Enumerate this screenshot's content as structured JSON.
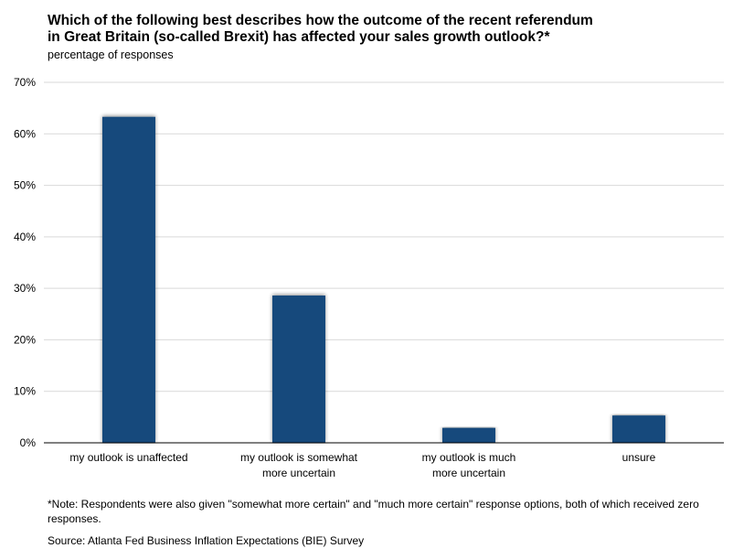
{
  "header": {
    "title_line1": "Which of the following best describes how the outcome of the recent referendum",
    "title_line2": "in Great Britain (so-called Brexit) has affected your sales growth outlook?*",
    "subtitle": "percentage of responses"
  },
  "footer": {
    "note": "*Note: Respondents were also given \"somewhat more certain\" and \"much more certain\" response options, both of which received zero responses.",
    "source": "Source: Atlanta Fed Business Inflation Expectations (BIE) Survey"
  },
  "chart_data": {
    "type": "bar",
    "title": "Which of the following best describes how the outcome of the recent referendum in Great Britain (so-called Brexit) has affected your sales growth outlook?*",
    "subtitle": "percentage of responses",
    "categories": [
      [
        "my outlook is unaffected"
      ],
      [
        "my outlook is somewhat",
        "more uncertain"
      ],
      [
        "my outlook is much",
        "more uncertain"
      ],
      [
        "unsure"
      ]
    ],
    "values": [
      63.3,
      28.6,
      2.9,
      5.3
    ],
    "unit": "%",
    "ylim": [
      0,
      70
    ],
    "yticks": [
      0,
      10,
      20,
      30,
      40,
      50,
      60,
      70
    ],
    "ytick_labels": [
      "0%",
      "10%",
      "20%",
      "30%",
      "40%",
      "50%",
      "60%",
      "70%"
    ],
    "grid": true,
    "bar_color": "#174a7c",
    "grid_color": "#d9d9d9",
    "axis_color": "#000000"
  }
}
